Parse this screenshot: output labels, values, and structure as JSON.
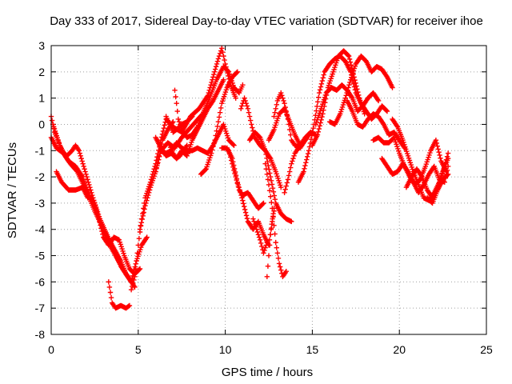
{
  "chart_data": {
    "type": "scatter",
    "title": "Day 333 of 2017, Sidereal Day-to-day VTEC variation (SDTVAR) for receiver ihoe",
    "xlabel": "GPS time / hours",
    "ylabel": "SDTVAR / TECUs",
    "xlim": [
      0,
      25
    ],
    "ylim": [
      -8,
      3
    ],
    "xticks": [
      0,
      5,
      10,
      15,
      20,
      25
    ],
    "yticks": [
      -8,
      -7,
      -6,
      -5,
      -4,
      -3,
      -2,
      -1,
      0,
      1,
      2,
      3
    ],
    "grid": true,
    "marker": "+",
    "series_color": "#ff0000",
    "series": [
      {
        "x": [
          0.0,
          0.2,
          0.5,
          0.8,
          1.1,
          1.5,
          2.0,
          2.5,
          3.0,
          3.5,
          4.0,
          4.3,
          4.6,
          4.9,
          5.2,
          5.5
        ],
        "y": [
          0.3,
          -0.3,
          -0.8,
          -1.2,
          -1.5,
          -1.8,
          -2.5,
          -3.3,
          -4.0,
          -4.6,
          -5.2,
          -5.7,
          -6.0,
          -5.2,
          -4.6,
          -4.3
        ]
      },
      {
        "x": [
          0.0,
          0.3,
          0.7,
          1.0,
          1.4,
          1.8,
          2.2,
          2.7,
          3.2,
          3.7,
          4.1,
          4.5,
          4.8
        ],
        "y": [
          -0.5,
          -0.9,
          -1.1,
          -1.4,
          -1.6,
          -2.0,
          -2.7,
          -3.5,
          -4.4,
          -5.0,
          -5.5,
          -5.9,
          -6.2
        ]
      },
      {
        "x": [
          0.1,
          0.4,
          0.6,
          0.9,
          1.2,
          1.4,
          1.6,
          2.0,
          2.4,
          2.8,
          3.2,
          3.6,
          4.0,
          4.4
        ],
        "y": [
          0.0,
          -0.6,
          -1.0,
          -1.2,
          -1.0,
          -0.8,
          -1.0,
          -1.9,
          -2.8,
          -3.6,
          -4.2,
          -4.8,
          -5.4,
          -5.8
        ]
      },
      {
        "x": [
          0.3,
          0.6,
          1.0,
          1.4,
          1.8,
          2.1,
          2.4,
          2.7,
          3.0,
          3.3,
          3.6,
          3.9,
          4.2,
          4.5,
          4.8,
          5.1
        ],
        "y": [
          -1.8,
          -2.2,
          -2.5,
          -2.5,
          -2.4,
          -2.8,
          -2.8,
          -3.5,
          -4.3,
          -4.6,
          -4.3,
          -4.4,
          -5.0,
          -5.5,
          -5.7,
          -5.5
        ]
      },
      {
        "x": [
          3.3,
          3.5,
          3.7,
          4.0,
          4.3,
          4.5
        ],
        "y": [
          -6.0,
          -6.8,
          -7.0,
          -6.9,
          -7.0,
          -6.9
        ]
      },
      {
        "x": [
          4.6,
          4.8,
          5.0,
          5.2,
          5.4,
          5.7,
          6.0,
          6.3,
          6.6,
          7.0,
          7.5,
          8.0,
          8.5,
          9.0,
          9.3,
          9.6,
          9.8,
          10.0,
          10.3,
          10.6
        ],
        "y": [
          -6.3,
          -5.8,
          -4.6,
          -3.6,
          -2.8,
          -2.2,
          -1.5,
          -0.6,
          0.2,
          -0.1,
          -0.3,
          0.3,
          0.6,
          1.1,
          1.8,
          2.5,
          2.9,
          2.3,
          1.5,
          1.0
        ]
      },
      {
        "x": [
          5.1,
          5.4,
          5.7,
          6.0,
          6.3,
          6.7,
          7.1,
          7.5,
          7.9,
          8.3,
          8.7,
          9.1,
          9.5,
          9.9,
          10.2,
          10.5,
          10.8,
          11.0
        ],
        "y": [
          -4.0,
          -3.1,
          -2.4,
          -1.8,
          -1.0,
          -0.7,
          -0.9,
          -0.5,
          -0.2,
          0.1,
          0.4,
          1.0,
          1.7,
          2.2,
          2.0,
          1.4,
          1.2,
          1.5
        ]
      },
      {
        "x": [
          6.0,
          6.3,
          6.6,
          6.9,
          7.2,
          7.5,
          7.8,
          8.1,
          8.4,
          8.7,
          9.0,
          9.3,
          9.6,
          9.9
        ],
        "y": [
          -0.5,
          -0.9,
          -1.2,
          -1.1,
          -1.3,
          -1.0,
          -1.2,
          -0.6,
          -0.2,
          0.2,
          0.6,
          0.9,
          1.3,
          1.7
        ]
      },
      {
        "x": [
          6.3,
          6.6,
          6.9,
          7.2,
          7.5,
          7.8,
          8.1,
          8.4,
          8.7,
          9.0,
          9.3,
          9.6,
          9.9,
          10.2,
          10.5
        ],
        "y": [
          -1.0,
          -1.1,
          -1.0,
          -0.7,
          -0.9,
          -1.0,
          -1.0,
          -0.9,
          -1.0,
          -1.1,
          -0.8,
          -0.4,
          0.0,
          -0.6,
          -0.8
        ]
      },
      {
        "x": [
          6.6,
          6.8,
          7.0,
          7.2,
          7.5,
          7.8,
          8.1
        ],
        "y": [
          0.3,
          0.0,
          -0.3,
          -0.2,
          0.0,
          0.1,
          0.3
        ]
      },
      {
        "x": [
          6.8,
          7.0,
          7.2,
          7.4,
          7.6,
          7.8
        ],
        "y": [
          -0.8,
          -1.1,
          -1.3,
          -1.2,
          -1.0,
          -0.8
        ]
      },
      {
        "x": [
          6.0,
          6.2,
          6.4,
          6.7,
          7.0
        ],
        "y": [
          -1.8,
          -1.2,
          -0.6,
          -0.2,
          0.1
        ]
      },
      {
        "x": [
          7.1,
          7.2,
          7.3,
          7.5,
          7.8,
          8.1,
          8.4,
          8.6
        ],
        "y": [
          1.3,
          0.8,
          0.2,
          -0.2,
          -0.5,
          -0.4,
          -0.1,
          0.2
        ]
      },
      {
        "x": [
          8.6,
          8.9,
          9.2,
          9.4,
          9.6,
          9.8,
          10.1,
          10.4,
          10.7
        ],
        "y": [
          -1.9,
          -1.7,
          -1.1,
          -0.6,
          0.1,
          0.8,
          1.4,
          1.8,
          2.0
        ]
      },
      {
        "x": [
          9.8,
          10.0,
          10.2,
          10.4,
          10.6,
          10.8,
          11.0,
          11.3,
          11.6,
          11.9,
          12.2
        ],
        "y": [
          -0.9,
          -0.9,
          -1.0,
          -1.5,
          -2.0,
          -2.5,
          -2.7,
          -2.6,
          -2.9,
          -3.2,
          -3.0
        ]
      },
      {
        "x": [
          10.1,
          10.4,
          10.7,
          11.0,
          11.3,
          11.6,
          11.9,
          12.2,
          12.5,
          12.8
        ],
        "y": [
          -0.9,
          -1.3,
          -2.2,
          -2.9,
          -3.7,
          -4.0,
          -3.7,
          -4.2,
          -4.6,
          -3.2
        ]
      },
      {
        "x": [
          10.9,
          11.1,
          11.3,
          11.5,
          11.7,
          12.0,
          12.3,
          12.6,
          12.9,
          13.2
        ],
        "y": [
          0.6,
          1.0,
          0.6,
          0.0,
          -0.5,
          -0.8,
          -1.0,
          -1.3,
          -1.8,
          -2.4
        ]
      },
      {
        "x": [
          11.4,
          11.7,
          12.0,
          12.3,
          12.6,
          12.9,
          13.2,
          13.5,
          13.8
        ],
        "y": [
          -0.6,
          -0.3,
          -0.5,
          -1.0,
          -2.0,
          -3.0,
          -3.4,
          -3.6,
          -3.7
        ]
      },
      {
        "x": [
          11.6,
          11.8,
          12.0,
          12.2,
          12.4
        ],
        "y": [
          -3.6,
          -4.0,
          -4.4,
          -4.9,
          -4.5
        ]
      },
      {
        "x": [
          12.3,
          12.5,
          12.7,
          12.9,
          13.1,
          13.3,
          13.5
        ],
        "y": [
          -1.5,
          -2.3,
          -3.2,
          -4.5,
          -5.3,
          -5.8,
          -5.6
        ]
      },
      {
        "x": [
          12.4,
          12.5,
          12.6,
          12.7,
          12.8
        ],
        "y": [
          -5.8,
          -5.0,
          -4.2,
          -3.7,
          -3.3
        ]
      },
      {
        "x": [
          12.5,
          12.8,
          13.1,
          13.4,
          13.7,
          14.0,
          14.3,
          14.6,
          14.9,
          15.2
        ],
        "y": [
          -0.6,
          -0.2,
          0.4,
          0.6,
          0.1,
          -0.4,
          -0.8,
          -0.5,
          -0.3,
          -0.4
        ]
      },
      {
        "x": [
          12.8,
          13.0,
          13.2,
          13.4,
          13.6,
          13.8,
          14.0,
          14.3,
          14.6,
          14.9
        ],
        "y": [
          0.3,
          0.9,
          1.2,
          0.8,
          0.2,
          -0.6,
          -0.8,
          -0.9,
          -0.6,
          -0.3
        ]
      },
      {
        "x": [
          13.4,
          13.6,
          13.8,
          14.0,
          14.2
        ],
        "y": [
          -2.6,
          -2.1,
          -1.5,
          -1.1,
          -0.9
        ]
      },
      {
        "x": [
          14.2,
          14.5,
          14.8,
          15.1,
          15.4,
          15.7,
          16.0,
          16.3,
          16.6,
          16.9,
          17.2,
          17.5,
          17.8,
          18.1,
          18.4,
          18.7,
          19.0,
          19.3
        ],
        "y": [
          -2.2,
          -1.8,
          -1.0,
          0.0,
          1.2,
          2.0,
          2.3,
          2.5,
          2.6,
          2.4,
          2.0,
          1.2,
          0.8,
          0.5,
          0.2,
          0.4,
          0.7,
          0.5
        ]
      },
      {
        "x": [
          15.0,
          15.3,
          15.6,
          15.9,
          16.2,
          16.5,
          16.8,
          17.1,
          17.4,
          17.7,
          18.0
        ],
        "y": [
          -0.8,
          -0.4,
          0.4,
          1.4,
          2.0,
          2.6,
          2.8,
          2.6,
          1.8,
          1.0,
          0.4
        ]
      },
      {
        "x": [
          15.2,
          15.5,
          15.8,
          16.1,
          16.4,
          16.7,
          17.0,
          17.3,
          17.6,
          17.9,
          18.2,
          18.5,
          18.8
        ],
        "y": [
          0.0,
          0.6,
          1.2,
          1.4,
          1.3,
          1.5,
          1.3,
          1.0,
          0.5,
          0.7,
          1.0,
          1.2,
          0.9
        ]
      },
      {
        "x": [
          16.0,
          16.3,
          16.6,
          16.9,
          17.2,
          17.5,
          17.8,
          18.1,
          18.4,
          18.7,
          19.0,
          19.3,
          19.6
        ],
        "y": [
          0.1,
          0.0,
          0.4,
          1.0,
          1.7,
          2.3,
          2.6,
          2.4,
          2.0,
          2.2,
          2.1,
          1.8,
          1.4
        ]
      },
      {
        "x": [
          17.0,
          17.3,
          17.6,
          17.9,
          18.2,
          18.5,
          18.8,
          19.1,
          19.4,
          19.7,
          20.0,
          20.3
        ],
        "y": [
          0.9,
          0.5,
          0.0,
          -0.1,
          0.2,
          0.4,
          0.3,
          0.0,
          -0.4,
          -0.3,
          -0.6,
          -0.9
        ]
      },
      {
        "x": [
          18.5,
          18.8,
          19.1,
          19.4,
          19.7,
          20.0,
          20.3,
          20.6,
          20.9,
          21.2,
          21.5,
          21.8,
          22.1,
          22.4,
          22.7
        ],
        "y": [
          -0.6,
          -0.5,
          -0.7,
          -0.7,
          -0.5,
          -1.1,
          -1.6,
          -2.0,
          -2.3,
          -2.1,
          -1.6,
          -1.0,
          -0.6,
          -1.4,
          -1.8
        ]
      },
      {
        "x": [
          19.0,
          19.3,
          19.6,
          19.9,
          20.2,
          20.5,
          20.8,
          21.1,
          21.4,
          21.7,
          22.0,
          22.3,
          22.6,
          22.8
        ],
        "y": [
          -1.3,
          -1.6,
          -1.9,
          -1.8,
          -1.5,
          -1.8,
          -2.2,
          -2.6,
          -2.3,
          -1.9,
          -1.6,
          -2.1,
          -2.2,
          -1.6
        ]
      },
      {
        "x": [
          19.6,
          19.9,
          20.2,
          20.5,
          20.8,
          21.1,
          21.4,
          21.7,
          22.0,
          22.3,
          22.6,
          22.8
        ],
        "y": [
          0.2,
          -0.1,
          -0.6,
          -1.2,
          -1.8,
          -2.3,
          -2.8,
          -2.9,
          -2.6,
          -2.2,
          -1.6,
          -1.1
        ]
      },
      {
        "x": [
          20.4,
          20.7,
          21.0,
          21.3,
          21.6,
          21.9,
          22.2,
          22.5,
          22.8
        ],
        "y": [
          -2.4,
          -2.0,
          -1.7,
          -2.0,
          -2.5,
          -2.8,
          -2.4,
          -1.8,
          -1.3
        ]
      },
      {
        "x": [
          21.6,
          21.9,
          22.2,
          22.5,
          22.8
        ],
        "y": [
          -2.8,
          -3.0,
          -2.5,
          -2.1,
          -1.9
        ]
      }
    ]
  }
}
